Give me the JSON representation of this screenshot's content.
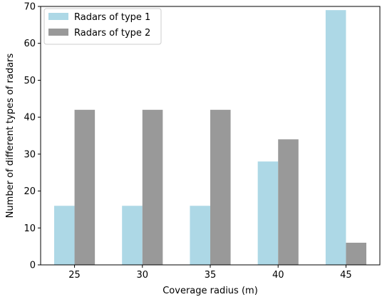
{
  "chart_data": {
    "type": "bar",
    "title": "",
    "xlabel": "Coverage radius (m)",
    "ylabel": "Number of different types of radars",
    "categories": [
      "25",
      "30",
      "35",
      "40",
      "45"
    ],
    "series": [
      {
        "name": "Radars of type 1",
        "values": [
          16,
          16,
          16,
          28,
          69
        ],
        "color": "#add8e6"
      },
      {
        "name": "Radars of type 2",
        "values": [
          42,
          42,
          42,
          34,
          6
        ],
        "color": "#999999"
      }
    ],
    "ylim": [
      0,
      70
    ],
    "yticks": [
      "0",
      "10",
      "20",
      "30",
      "40",
      "50",
      "60",
      "70"
    ],
    "grid": false,
    "legend_position": "top-left"
  }
}
